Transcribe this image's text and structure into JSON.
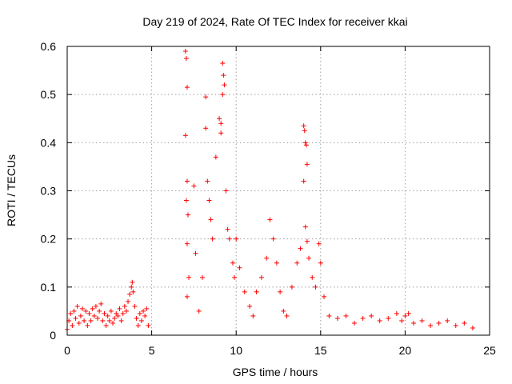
{
  "chart_data": {
    "type": "scatter",
    "title": "Day 219 of 2024, Rate Of TEC Index for receiver kkai",
    "xlabel": "GPS time / hours",
    "ylabel": "ROTI / TECUs",
    "xlim": [
      0,
      25
    ],
    "ylim": [
      0,
      0.6
    ],
    "x_ticks": [
      0,
      5,
      10,
      15,
      20,
      25
    ],
    "y_ticks": [
      0,
      0.1,
      0.2,
      0.3,
      0.4,
      0.5,
      0.6
    ],
    "x_tick_labels": [
      "0",
      "5",
      "10",
      "15",
      "20",
      "25"
    ],
    "y_tick_labels": [
      "0",
      "0.1",
      "0.2",
      "0.3",
      "0.4",
      "0.5",
      "0.6"
    ],
    "grid": true,
    "marker": "+",
    "series": [
      {
        "color": "#ff0000",
        "points": [
          [
            0.0,
            0.012
          ],
          [
            0.1,
            0.03
          ],
          [
            0.2,
            0.045
          ],
          [
            0.3,
            0.02
          ],
          [
            0.4,
            0.05
          ],
          [
            0.5,
            0.035
          ],
          [
            0.6,
            0.06
          ],
          [
            0.7,
            0.025
          ],
          [
            0.8,
            0.04
          ],
          [
            0.9,
            0.055
          ],
          [
            1.0,
            0.03
          ],
          [
            1.1,
            0.05
          ],
          [
            1.2,
            0.02
          ],
          [
            1.3,
            0.045
          ],
          [
            1.4,
            0.03
          ],
          [
            1.5,
            0.055
          ],
          [
            1.6,
            0.04
          ],
          [
            1.7,
            0.06
          ],
          [
            1.8,
            0.035
          ],
          [
            1.9,
            0.05
          ],
          [
            2.0,
            0.065
          ],
          [
            2.1,
            0.03
          ],
          [
            2.2,
            0.045
          ],
          [
            2.3,
            0.02
          ],
          [
            2.4,
            0.04
          ],
          [
            2.5,
            0.03
          ],
          [
            2.6,
            0.05
          ],
          [
            2.7,
            0.025
          ],
          [
            2.8,
            0.035
          ],
          [
            2.9,
            0.045
          ],
          [
            3.0,
            0.04
          ],
          [
            3.1,
            0.055
          ],
          [
            3.2,
            0.03
          ],
          [
            3.3,
            0.045
          ],
          [
            3.4,
            0.06
          ],
          [
            3.5,
            0.05
          ],
          [
            3.6,
            0.07
          ],
          [
            3.7,
            0.085
          ],
          [
            3.8,
            0.1
          ],
          [
            3.85,
            0.11
          ],
          [
            3.9,
            0.09
          ],
          [
            4.0,
            0.06
          ],
          [
            4.1,
            0.035
          ],
          [
            4.2,
            0.02
          ],
          [
            4.3,
            0.045
          ],
          [
            4.4,
            0.03
          ],
          [
            4.5,
            0.05
          ],
          [
            4.6,
            0.04
          ],
          [
            4.7,
            0.055
          ],
          [
            4.8,
            0.02
          ],
          [
            7.0,
            0.59
          ],
          [
            7.05,
            0.575
          ],
          [
            7.1,
            0.515
          ],
          [
            7.0,
            0.415
          ],
          [
            7.1,
            0.32
          ],
          [
            7.05,
            0.28
          ],
          [
            7.15,
            0.25
          ],
          [
            7.1,
            0.19
          ],
          [
            7.2,
            0.12
          ],
          [
            7.1,
            0.08
          ],
          [
            7.5,
            0.31
          ],
          [
            7.6,
            0.17
          ],
          [
            7.8,
            0.05
          ],
          [
            8.0,
            0.12
          ],
          [
            8.2,
            0.43
          ],
          [
            8.3,
            0.32
          ],
          [
            8.4,
            0.28
          ],
          [
            8.5,
            0.24
          ],
          [
            8.6,
            0.2
          ],
          [
            8.8,
            0.37
          ],
          [
            8.2,
            0.495
          ],
          [
            9.0,
            0.45
          ],
          [
            9.1,
            0.44
          ],
          [
            9.2,
            0.565
          ],
          [
            9.25,
            0.54
          ],
          [
            9.3,
            0.52
          ],
          [
            9.2,
            0.5
          ],
          [
            9.1,
            0.42
          ],
          [
            9.4,
            0.3
          ],
          [
            9.5,
            0.22
          ],
          [
            9.6,
            0.2
          ],
          [
            9.8,
            0.15
          ],
          [
            9.9,
            0.12
          ],
          [
            10.0,
            0.2
          ],
          [
            10.2,
            0.14
          ],
          [
            10.5,
            0.09
          ],
          [
            10.8,
            0.06
          ],
          [
            11.0,
            0.04
          ],
          [
            11.2,
            0.09
          ],
          [
            11.5,
            0.12
          ],
          [
            11.8,
            0.16
          ],
          [
            12.0,
            0.24
          ],
          [
            12.2,
            0.2
          ],
          [
            12.4,
            0.15
          ],
          [
            12.6,
            0.09
          ],
          [
            12.8,
            0.05
          ],
          [
            13.0,
            0.04
          ],
          [
            13.3,
            0.1
          ],
          [
            13.6,
            0.15
          ],
          [
            13.8,
            0.18
          ],
          [
            14.0,
            0.435
          ],
          [
            14.05,
            0.425
          ],
          [
            14.1,
            0.4
          ],
          [
            14.15,
            0.395
          ],
          [
            14.2,
            0.355
          ],
          [
            14.0,
            0.32
          ],
          [
            14.1,
            0.225
          ],
          [
            14.2,
            0.195
          ],
          [
            14.3,
            0.16
          ],
          [
            14.5,
            0.12
          ],
          [
            14.7,
            0.1
          ],
          [
            14.9,
            0.19
          ],
          [
            15.0,
            0.15
          ],
          [
            15.2,
            0.08
          ],
          [
            15.5,
            0.04
          ],
          [
            16.0,
            0.035
          ],
          [
            16.5,
            0.04
          ],
          [
            17.0,
            0.025
          ],
          [
            17.5,
            0.035
          ],
          [
            18.0,
            0.04
          ],
          [
            18.5,
            0.03
          ],
          [
            19.0,
            0.035
          ],
          [
            19.5,
            0.045
          ],
          [
            19.8,
            0.03
          ],
          [
            20.0,
            0.04
          ],
          [
            20.2,
            0.045
          ],
          [
            20.5,
            0.025
          ],
          [
            21.0,
            0.03
          ],
          [
            21.5,
            0.02
          ],
          [
            22.0,
            0.025
          ],
          [
            22.5,
            0.03
          ],
          [
            23.0,
            0.02
          ],
          [
            23.5,
            0.025
          ],
          [
            24.0,
            0.015
          ]
        ]
      }
    ]
  }
}
